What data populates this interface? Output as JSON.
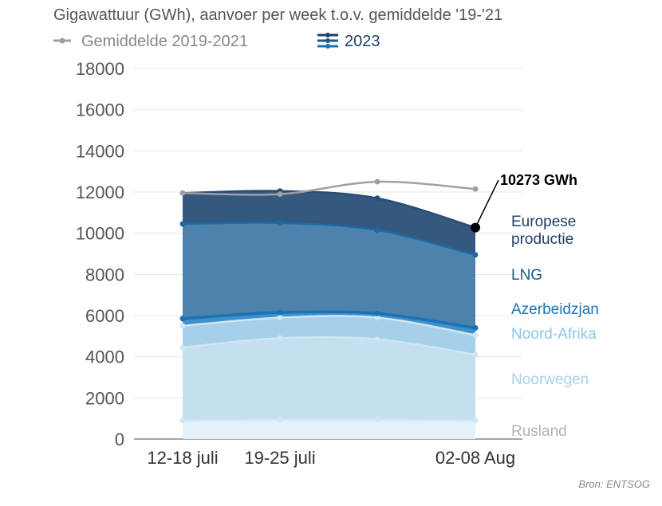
{
  "chart_data": {
    "type": "area",
    "title": "Gigawattuur (GWh), aanvoer per week t.o.v. gemiddelde '19-'21",
    "xlabel": "",
    "ylabel": "",
    "ylim": [
      0,
      18000
    ],
    "yticks": [
      0,
      2000,
      4000,
      6000,
      8000,
      10000,
      12000,
      14000,
      16000,
      18000
    ],
    "x_labels": [
      "12-18 juli",
      "19-25 juli",
      "",
      "02-08 Aug"
    ],
    "grid": true,
    "stacked": true,
    "legend": {
      "position": "top-left",
      "items": [
        {
          "label": "Gemiddelde 2019-2021",
          "color": "#a0a0a0"
        },
        {
          "label": "2023",
          "color": "#1f5f8b"
        }
      ]
    },
    "series": [
      {
        "name": "Rusland",
        "color": "#e4f1f9",
        "label_color": "#b3b3b3",
        "values": [
          900,
          950,
          950,
          900
        ]
      },
      {
        "name": "Noorwegen",
        "color": "#c3dff0",
        "label_color": "#a9d2ea",
        "values": [
          4450,
          4900,
          4850,
          4100
        ]
      },
      {
        "name": "Noord-Afrika",
        "color": "#a6cfea",
        "label_color": "#8ec6e6",
        "values": [
          5500,
          5900,
          5900,
          5050
        ]
      },
      {
        "name": "Azerbeidzjan",
        "color": "#3f8fc9",
        "label_color": "#1a73b5",
        "values": [
          5850,
          6150,
          6100,
          5400
        ]
      },
      {
        "name": "LNG",
        "color": "#4d82ac",
        "label_color": "#1b5a85",
        "values": [
          10450,
          10500,
          10150,
          8950
        ]
      },
      {
        "name": "Europese productie",
        "color": "#35587f",
        "label_color": "#1f3f66",
        "values": [
          11950,
          12050,
          11700,
          10273
        ]
      }
    ],
    "average_series": {
      "name": "Gemiddelde 2019-2021",
      "color": "#a0a0a0",
      "values": [
        11950,
        11900,
        12500,
        12150
      ]
    },
    "annotation": {
      "text": "10273 GWh",
      "value": 10273
    }
  },
  "source": "Bron: ENTSOG"
}
